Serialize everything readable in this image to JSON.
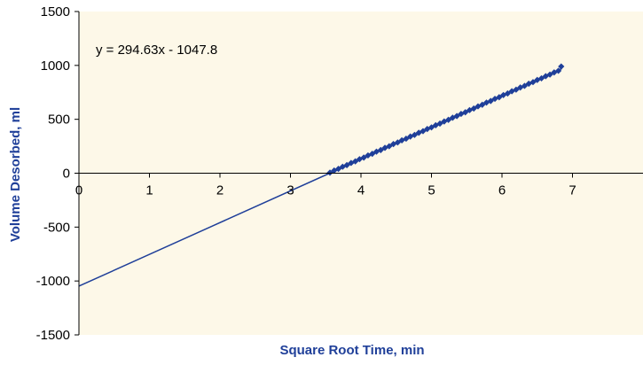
{
  "chart_data": {
    "type": "scatter",
    "title": "",
    "xlabel": "Square Root Time, min",
    "ylabel": "Volume Desorbed, ml",
    "xlim": [
      0,
      8
    ],
    "ylim": [
      -1500,
      1500
    ],
    "x_ticks": [
      "0",
      "1",
      "2",
      "3",
      "4",
      "5",
      "6",
      "7"
    ],
    "y_ticks": [
      "1500",
      "1000",
      "500",
      "0",
      "-500",
      "-1000",
      "-1500"
    ],
    "x_tick_values": [
      0,
      1,
      2,
      3,
      4,
      5,
      6,
      7
    ],
    "y_tick_values": [
      1500,
      1000,
      500,
      0,
      -500,
      -1000,
      -1500
    ],
    "grid": false,
    "legend": "none",
    "trendline": {
      "equation": "y = 294.63x - 1047.8",
      "slope": 294.63,
      "intercept": -1047.8,
      "x_range": [
        0,
        6.85
      ]
    },
    "series": [
      {
        "x": [
          3.56,
          3.62,
          3.68,
          3.74,
          3.8,
          3.86,
          3.92,
          3.98,
          4.04,
          4.1,
          4.16,
          4.22,
          4.28,
          4.34,
          4.4,
          4.46,
          4.52,
          4.58,
          4.64,
          4.7,
          4.76,
          4.82,
          4.88,
          4.94,
          5.0,
          5.06,
          5.12,
          5.18,
          5.24,
          5.3,
          5.36,
          5.42,
          5.48,
          5.54,
          5.6,
          5.66,
          5.72,
          5.78,
          5.84,
          5.9,
          5.96,
          6.02,
          6.08,
          6.14,
          6.2,
          6.26,
          6.32,
          6.38,
          6.44,
          6.5,
          6.56,
          6.62,
          6.68,
          6.74,
          6.8,
          6.84
        ],
        "y": [
          5,
          25,
          40,
          60,
          75,
          95,
          110,
          130,
          145,
          165,
          180,
          200,
          215,
          235,
          250,
          270,
          285,
          305,
          320,
          340,
          355,
          375,
          390,
          410,
          425,
          445,
          460,
          480,
          495,
          515,
          530,
          550,
          565,
          585,
          600,
          620,
          635,
          655,
          670,
          690,
          705,
          725,
          740,
          760,
          775,
          795,
          810,
          830,
          845,
          865,
          880,
          900,
          915,
          935,
          950,
          990
        ]
      }
    ],
    "colors": {
      "plot_bg": "#fdf8e8",
      "marker": "#1f3f99",
      "line": "#1f3f99",
      "axis_title": "#1f3f99",
      "axis": "#000000"
    }
  }
}
